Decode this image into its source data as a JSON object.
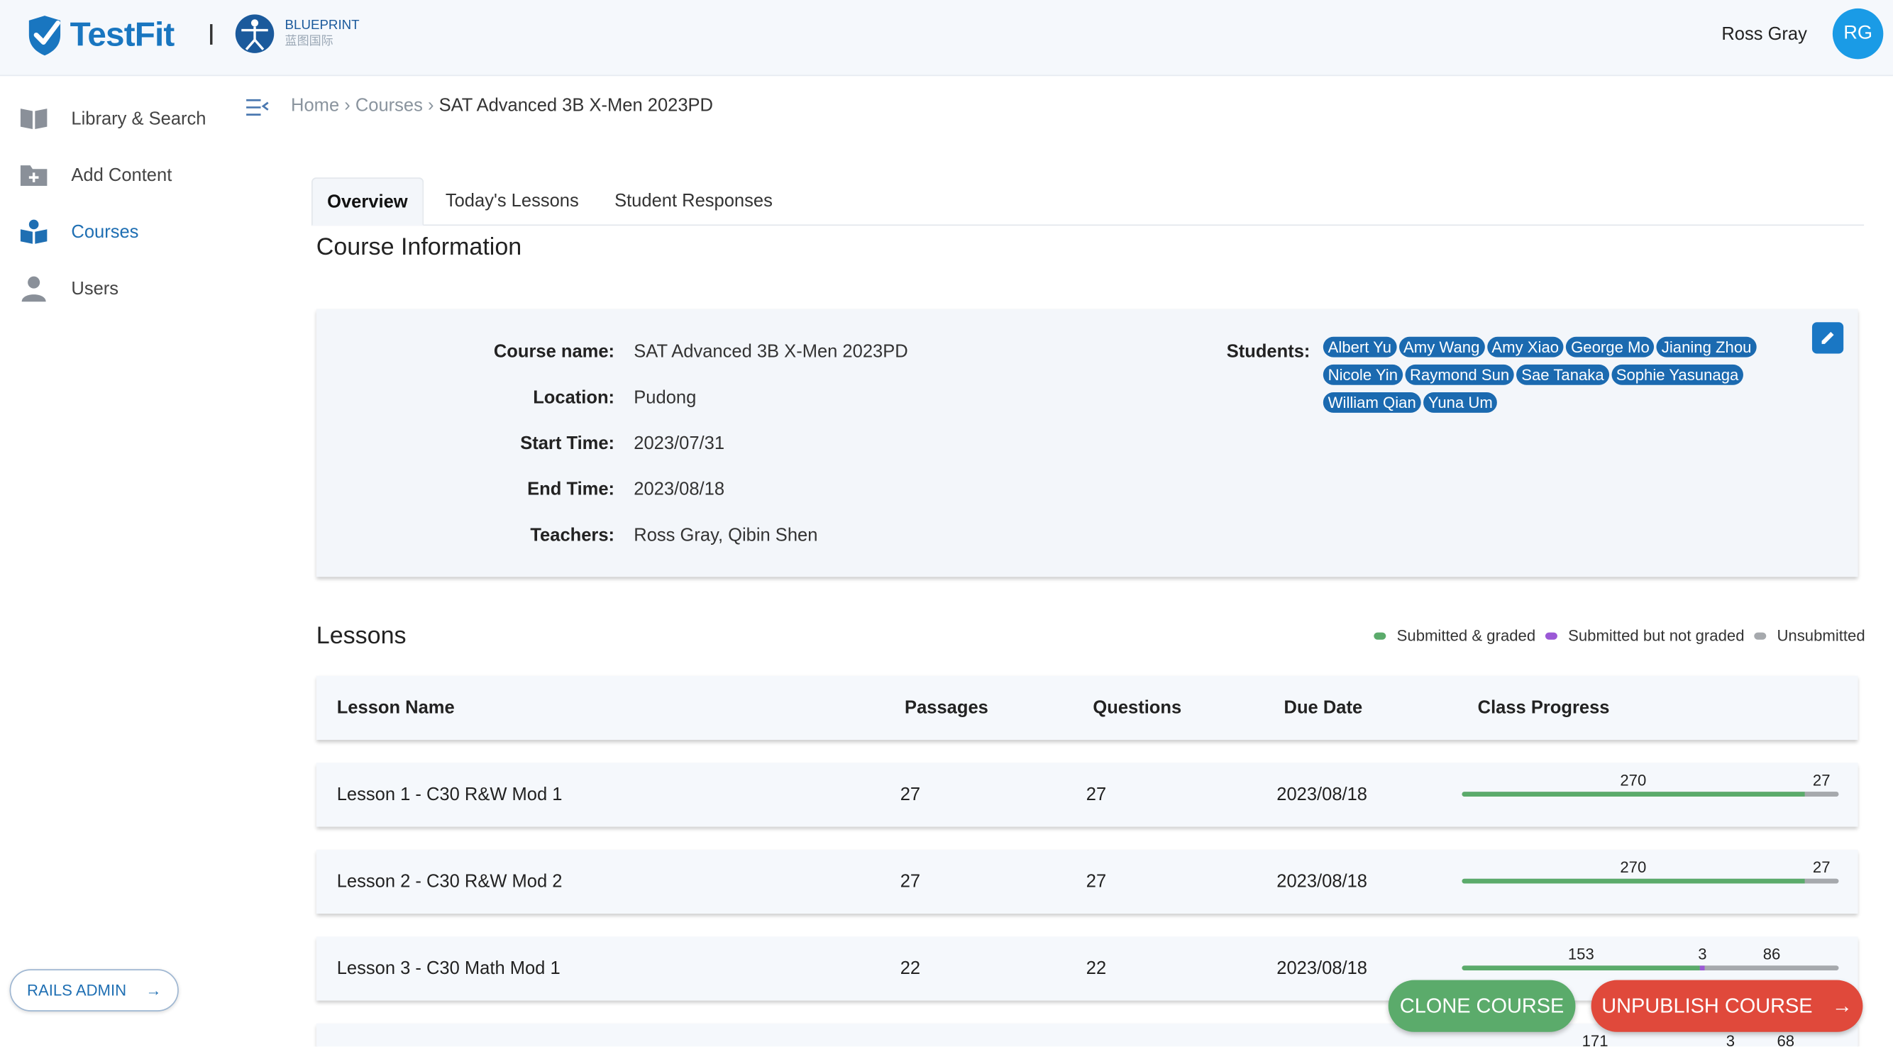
{
  "header": {
    "logo_text": "TestFit",
    "partner_name": "BLUEPRINT",
    "partner_name_cn": "蓝图国际",
    "user_name": "Ross Gray",
    "avatar_initials": "RG"
  },
  "sidebar": {
    "items": [
      {
        "label": "Library & Search",
        "icon": "book-icon"
      },
      {
        "label": "Add Content",
        "icon": "folder-plus-icon"
      },
      {
        "label": "Courses",
        "icon": "courses-icon"
      },
      {
        "label": "Users",
        "icon": "user-icon"
      }
    ],
    "rails_admin_label": "RAILS ADMIN",
    "rails_admin_arrow": "→"
  },
  "breadcrumb": {
    "home": "Home",
    "courses": "Courses",
    "current": "SAT Advanced 3B X-Men 2023PD",
    "separator": "›"
  },
  "tabs": [
    "Overview",
    "Today's Lessons",
    "Student Responses"
  ],
  "course_info": {
    "section_title": "Course Information",
    "fields": [
      {
        "label": "Course name:",
        "value": "SAT Advanced 3B X-Men 2023PD"
      },
      {
        "label": "Location:",
        "value": "Pudong"
      },
      {
        "label": "Start Time:",
        "value": "2023/07/31"
      },
      {
        "label": "End Time:",
        "value": "2023/08/18"
      },
      {
        "label": "Teachers:",
        "value": "Ross Gray, Qibin Shen"
      }
    ],
    "students_label": "Students:",
    "students": [
      "Albert Yu",
      "Amy Wang",
      "Amy Xiao",
      "George Mo",
      "Jianing Zhou",
      "Nicole Yin",
      "Raymond Sun",
      "Sae Tanaka",
      "Sophie Yasunaga",
      "William Qian",
      "Yuna Um"
    ]
  },
  "lessons": {
    "section_title": "Lessons",
    "legend": [
      {
        "label": "Submitted & graded",
        "color": "#5bab6b"
      },
      {
        "label": "Submitted but not graded",
        "color": "#9b59d6"
      },
      {
        "label": "Unsubmitted",
        "color": "#a6a9ad"
      }
    ],
    "columns": [
      "Lesson Name",
      "Passages",
      "Questions",
      "Due Date",
      "Class Progress"
    ],
    "rows": [
      {
        "name": "Lesson 1 - C30 R&W Mod 1",
        "passages": "27",
        "questions": "27",
        "due": "2023/08/18",
        "progress": {
          "graded": 270,
          "not_graded": 0,
          "unsubmitted": 27
        }
      },
      {
        "name": "Lesson 2 - C30 R&W Mod 2",
        "passages": "27",
        "questions": "27",
        "due": "2023/08/18",
        "progress": {
          "graded": 270,
          "not_graded": 0,
          "unsubmitted": 27
        }
      },
      {
        "name": "Lesson 3 - C30 Math Mod 1",
        "passages": "22",
        "questions": "22",
        "due": "2023/08/18",
        "progress": {
          "graded": 153,
          "not_graded": 3,
          "unsubmitted": 86
        }
      },
      {
        "name": "",
        "passages": "",
        "questions": "",
        "due": "",
        "progress": {
          "graded": 171,
          "not_graded": 3,
          "unsubmitted": 68
        }
      }
    ]
  },
  "actions": {
    "clone_label": "CLONE COURSE",
    "unpublish_label": "UNPUBLISH COURSE",
    "unpublish_arrow": "→"
  },
  "colors": {
    "brand_blue": "#1976c0",
    "chip_blue": "#1b6ab0",
    "clone_green": "#5bab6b",
    "unpublish_red": "#e0493b"
  }
}
